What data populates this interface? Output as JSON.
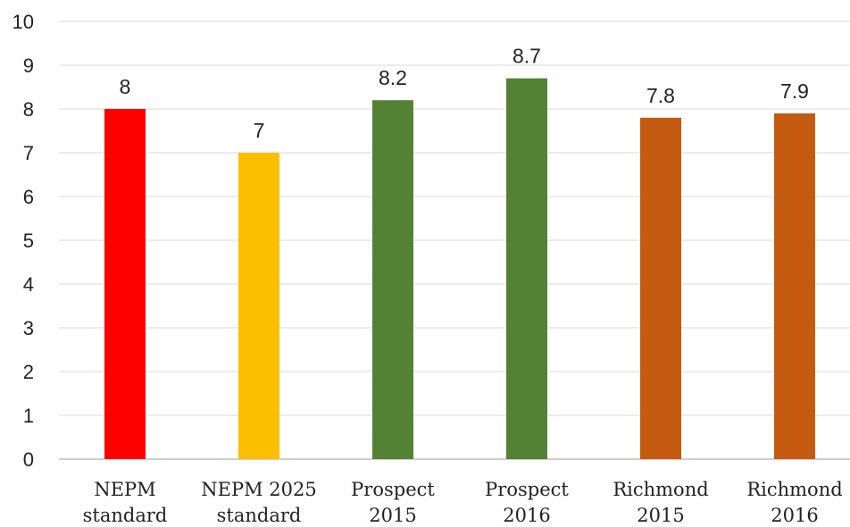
{
  "chart_data": {
    "type": "bar",
    "title": "",
    "xlabel": "",
    "ylabel": "",
    "ylim": [
      0,
      10
    ],
    "yticks": [
      0,
      1,
      2,
      3,
      4,
      5,
      6,
      7,
      8,
      9,
      10
    ],
    "grid": true,
    "legend": "none",
    "categories": [
      [
        "NEPM",
        "standard"
      ],
      [
        "NEPM 2025",
        "standard"
      ],
      [
        "Prospect",
        "2015"
      ],
      [
        "Prospect",
        "2016"
      ],
      [
        "Richmond",
        "2015"
      ],
      [
        "Richmond",
        "2016"
      ]
    ],
    "values": [
      8,
      7,
      8.2,
      8.7,
      7.8,
      7.9
    ],
    "data_labels": [
      "8",
      "7",
      "8.2",
      "8.7",
      "7.8",
      "7.9"
    ],
    "colors": [
      "#ff0000",
      "#fbbf00",
      "#548235",
      "#548235",
      "#c55a11",
      "#c55a11"
    ]
  }
}
